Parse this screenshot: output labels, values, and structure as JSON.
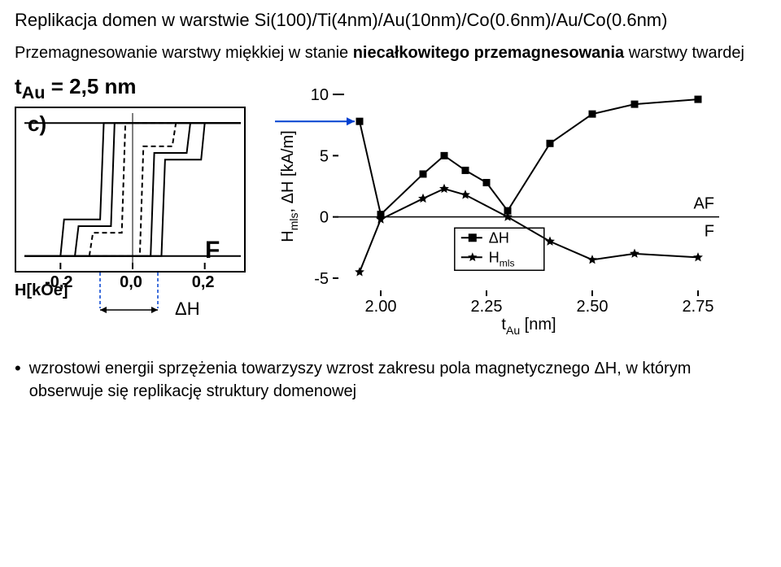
{
  "title": "Replikacja domen w warstwie Si(100)/Ti(4nm)/Au(10nm)/Co(0.6nm)/Au/Co(0.6nm)",
  "subtitle_pre": "Przemagnesowanie warstwy miękkiej w stanie ",
  "subtitle_bold1": "niecałkowitego przemagnesowania",
  "subtitle_post": " warstwy twardej",
  "tau_label": "t",
  "tau_sub": "Au",
  "tau_eq": " = 2,5 nm",
  "panel_letter": "c)",
  "F_label": "F",
  "hkoe": "H[kOe]",
  "dH_anno": "ΔH",
  "left_xticks": [
    "-0,2",
    "0,0",
    "0,2"
  ],
  "right": {
    "ylabel": "Hmls, ΔH [kA/m]",
    "xlabel_pre": "t",
    "xlabel_sub": "Au",
    "xlabel_post": " [nm]",
    "yticks": [
      -5,
      0,
      5,
      10
    ],
    "xticks": [
      "2.00",
      "2.25",
      "2.50",
      "2.75"
    ],
    "xtick_vals": [
      2.0,
      2.25,
      2.5,
      2.75
    ],
    "xlim": [
      1.9,
      2.8
    ],
    "ylim": [
      -6,
      11
    ],
    "AF": "AF",
    "Flab": "F",
    "legend_dH": "ΔH",
    "legend_Hmls_pre": "H",
    "legend_Hmls_sub": "mls",
    "series_square": {
      "x": [
        1.95,
        2.0,
        2.1,
        2.15,
        2.2,
        2.25,
        2.3,
        2.4,
        2.5,
        2.6,
        2.75
      ],
      "y": [
        7.8,
        0.2,
        3.5,
        5.0,
        3.8,
        2.8,
        0.5,
        6.0,
        8.4,
        9.2,
        9.6
      ],
      "color": "#000000",
      "marker": "square",
      "size": 9,
      "line_w": 2
    },
    "series_star": {
      "x": [
        1.95,
        2.0,
        2.1,
        2.15,
        2.2,
        2.3,
        2.4,
        2.5,
        2.6,
        2.75
      ],
      "y": [
        -4.5,
        -0.2,
        1.5,
        2.3,
        1.8,
        0.0,
        -2.0,
        -3.5,
        -3.0,
        -3.3
      ],
      "color": "#000000",
      "marker": "star",
      "size": 10,
      "line_w": 2
    }
  },
  "left_plot": {
    "xlim": [
      -0.3,
      0.3
    ],
    "ylim": [
      -1.15,
      1.15
    ],
    "outer": {
      "x": [
        -0.3,
        -0.2,
        -0.19,
        -0.09,
        -0.08,
        0.3,
        0.3,
        0.2,
        0.19,
        0.09,
        0.08,
        -0.3
      ],
      "y": [
        -1.0,
        -1.0,
        -0.45,
        -0.45,
        1.0,
        1.0,
        1.0,
        1.0,
        0.45,
        0.45,
        -1.0,
        -1.0
      ]
    },
    "mid": {
      "x": [
        -0.3,
        -0.16,
        -0.15,
        -0.06,
        -0.05,
        0.3,
        0.3,
        0.16,
        0.15,
        0.06,
        0.05,
        -0.3
      ],
      "y": [
        -1.0,
        -1.0,
        -0.55,
        -0.55,
        1.0,
        1.0,
        1.0,
        1.0,
        0.55,
        0.55,
        -1.0,
        -1.0
      ]
    },
    "inner_dash": {
      "x": [
        -0.3,
        -0.12,
        -0.11,
        -0.03,
        -0.02,
        0.3,
        0.3,
        0.12,
        0.11,
        0.03,
        0.02,
        -0.3
      ],
      "y": [
        -1.0,
        -1.0,
        -0.65,
        -0.65,
        1.0,
        1.0,
        1.0,
        1.0,
        0.65,
        0.65,
        -1.0,
        -1.0
      ]
    }
  },
  "bullet": "wzrostowi energii sprzężenia towarzyszy wzrost zakresu pola magnetycznego ΔH, w którym obserwuje się replikację struktury domenowej"
}
